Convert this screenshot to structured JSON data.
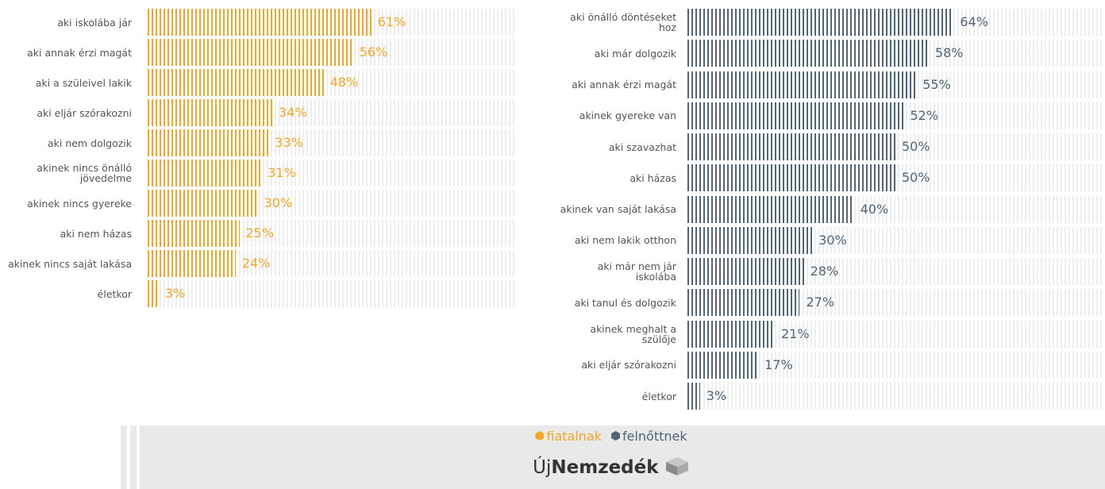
{
  "chart_data": [
    {
      "type": "bar",
      "orientation": "horizontal",
      "xlim": [
        0,
        100
      ],
      "categories": [
        "aki iskolába jár",
        "aki annak érzi magát",
        "aki a szüleivel lakik",
        "aki eljár szórakozni",
        "aki nem dolgozik",
        "akinek nincs önálló jövedelme",
        "akinek nincs gyereke",
        "aki nem házas",
        "akinek nincs saját lakása",
        "életkor"
      ],
      "series": [
        {
          "name": "fiatalnak",
          "color": "#f5a623",
          "values": [
            61,
            56,
            48,
            34,
            33,
            31,
            30,
            25,
            24,
            3
          ],
          "value_labels": [
            "61%",
            "56%",
            "48%",
            "34%",
            "33%",
            "31%",
            "30%",
            "25%",
            "24%",
            "3%"
          ]
        }
      ]
    },
    {
      "type": "bar",
      "orientation": "horizontal",
      "xlim": [
        0,
        100
      ],
      "categories": [
        "aki önálló döntéseket hoz",
        "aki már dolgozik",
        "aki annak érzi magát",
        "akinek gyereke van",
        "aki szavazhat",
        "aki házas",
        "akinek van saját lakása",
        "aki nem lakik otthon",
        "aki már nem jár iskolába",
        "aki tanul és dolgozik",
        "akinek meghalt a szülője",
        "aki eljár szórakozni",
        "életkor"
      ],
      "series": [
        {
          "name": "felnőttnek",
          "color": "#4e6678",
          "values": [
            64,
            58,
            55,
            52,
            50,
            50,
            40,
            30,
            28,
            27,
            21,
            17,
            3
          ],
          "value_labels": [
            "64%",
            "58%",
            "55%",
            "52%",
            "50%",
            "50%",
            "40%",
            "30%",
            "28%",
            "27%",
            "21%",
            "17%",
            "3%"
          ]
        }
      ]
    }
  ],
  "footer": {
    "brand_prefix": "Új",
    "brand_name": "Nemzedék"
  }
}
